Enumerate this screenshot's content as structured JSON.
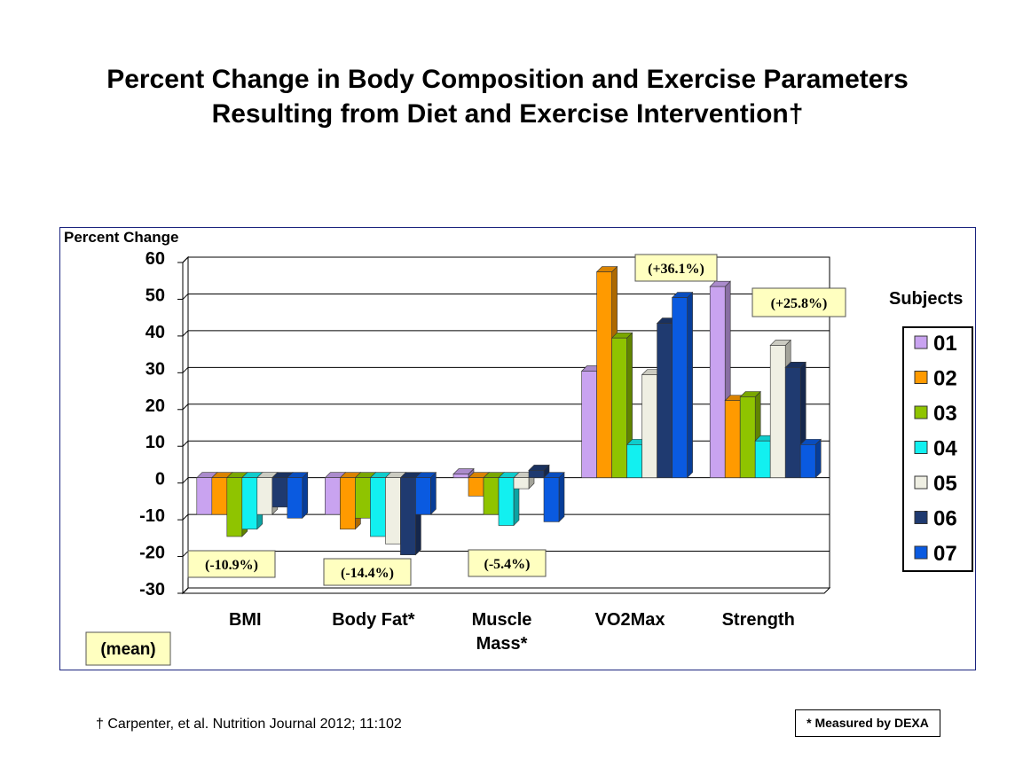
{
  "title_line1": "Percent Change in Body Composition and Exercise Parameters",
  "title_line2": "Resulting from Diet and Exercise Intervention†",
  "footnote": "† Carpenter, et al. Nutrition Journal 2012; 11:102",
  "dexa_note": "*  Measured by DEXA",
  "mean_label": "(mean)",
  "colors": {
    "01": "#c9a3f0",
    "02": "#ff9a00",
    "03": "#8fc400",
    "04": "#12f0f0",
    "05": "#efefe3",
    "06": "#1f3a70",
    "07": "#0a5ae0"
  },
  "chart_data": {
    "type": "bar",
    "ylabel": "Percent Change",
    "ylim": [
      -30,
      60
    ],
    "yticks": [
      60,
      50,
      40,
      30,
      20,
      10,
      0,
      -10,
      -20,
      -30
    ],
    "grid": true,
    "legend_title": "Subjects",
    "legend_position": "right",
    "categories": [
      [
        "BMI"
      ],
      [
        "Body Fat*"
      ],
      [
        "Muscle",
        "Mass*"
      ],
      [
        "VO2Max"
      ],
      [
        "Strength"
      ]
    ],
    "series": [
      {
        "name": "01",
        "values": [
          -10,
          -10,
          1,
          29,
          52
        ]
      },
      {
        "name": "02",
        "values": [
          -10,
          -14,
          -5,
          56,
          21
        ]
      },
      {
        "name": "03",
        "values": [
          -16,
          -11,
          -10,
          38,
          22
        ]
      },
      {
        "name": "04",
        "values": [
          -14,
          -16,
          -13,
          9,
          10
        ]
      },
      {
        "name": "05",
        "values": [
          -10,
          -18,
          -3,
          28,
          36
        ]
      },
      {
        "name": "06",
        "values": [
          -8,
          -21,
          2,
          42,
          30
        ]
      },
      {
        "name": "07",
        "values": [
          -11,
          -10,
          -12,
          49,
          9
        ]
      }
    ],
    "mean_labels": [
      "(-10.9%)",
      "(-14.4%)",
      "(-5.4%)",
      "(+36.1%)",
      "(+25.8%)"
    ]
  }
}
